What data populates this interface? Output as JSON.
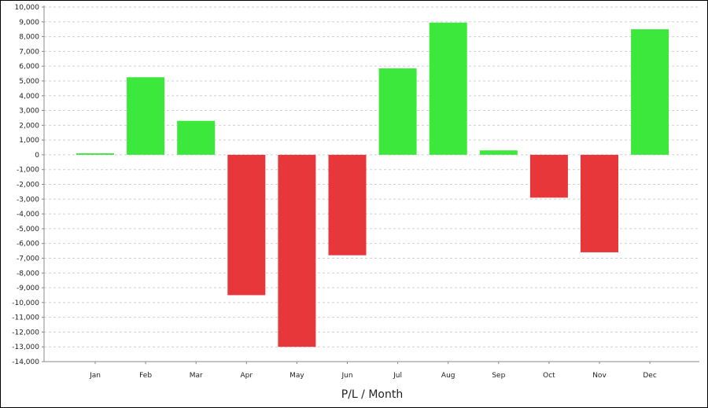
{
  "chart_data": {
    "type": "bar",
    "xlabel": "P/L / Month",
    "ylabel": "",
    "categories": [
      "Jan",
      "Feb",
      "Mar",
      "Apr",
      "May",
      "Jun",
      "Jul",
      "Aug",
      "Sep",
      "Oct",
      "Nov",
      "Dec"
    ],
    "values": [
      100,
      5250,
      2300,
      -9500,
      -13000,
      -6800,
      5850,
      8950,
      300,
      -2900,
      -6600,
      8500
    ],
    "ylim": [
      -14000,
      10000
    ],
    "y_ticks": [
      "10,000",
      "9,000",
      "8,000",
      "7,000",
      "6,000",
      "5,000",
      "4,000",
      "3,000",
      "2,000",
      "1,000",
      "0",
      "-1,000",
      "-2,000",
      "-3,000",
      "-4,000",
      "-5,000",
      "-6,000",
      "-7,000",
      "-8,000",
      "-9,000",
      "-10,000",
      "-11,000",
      "-12,000",
      "-13,000",
      "-14,000"
    ],
    "grid": true,
    "colors": {
      "positive": "#3de83d",
      "negative": "#e8373b",
      "grid": "#d0d0d0",
      "axis": "#888888"
    }
  }
}
